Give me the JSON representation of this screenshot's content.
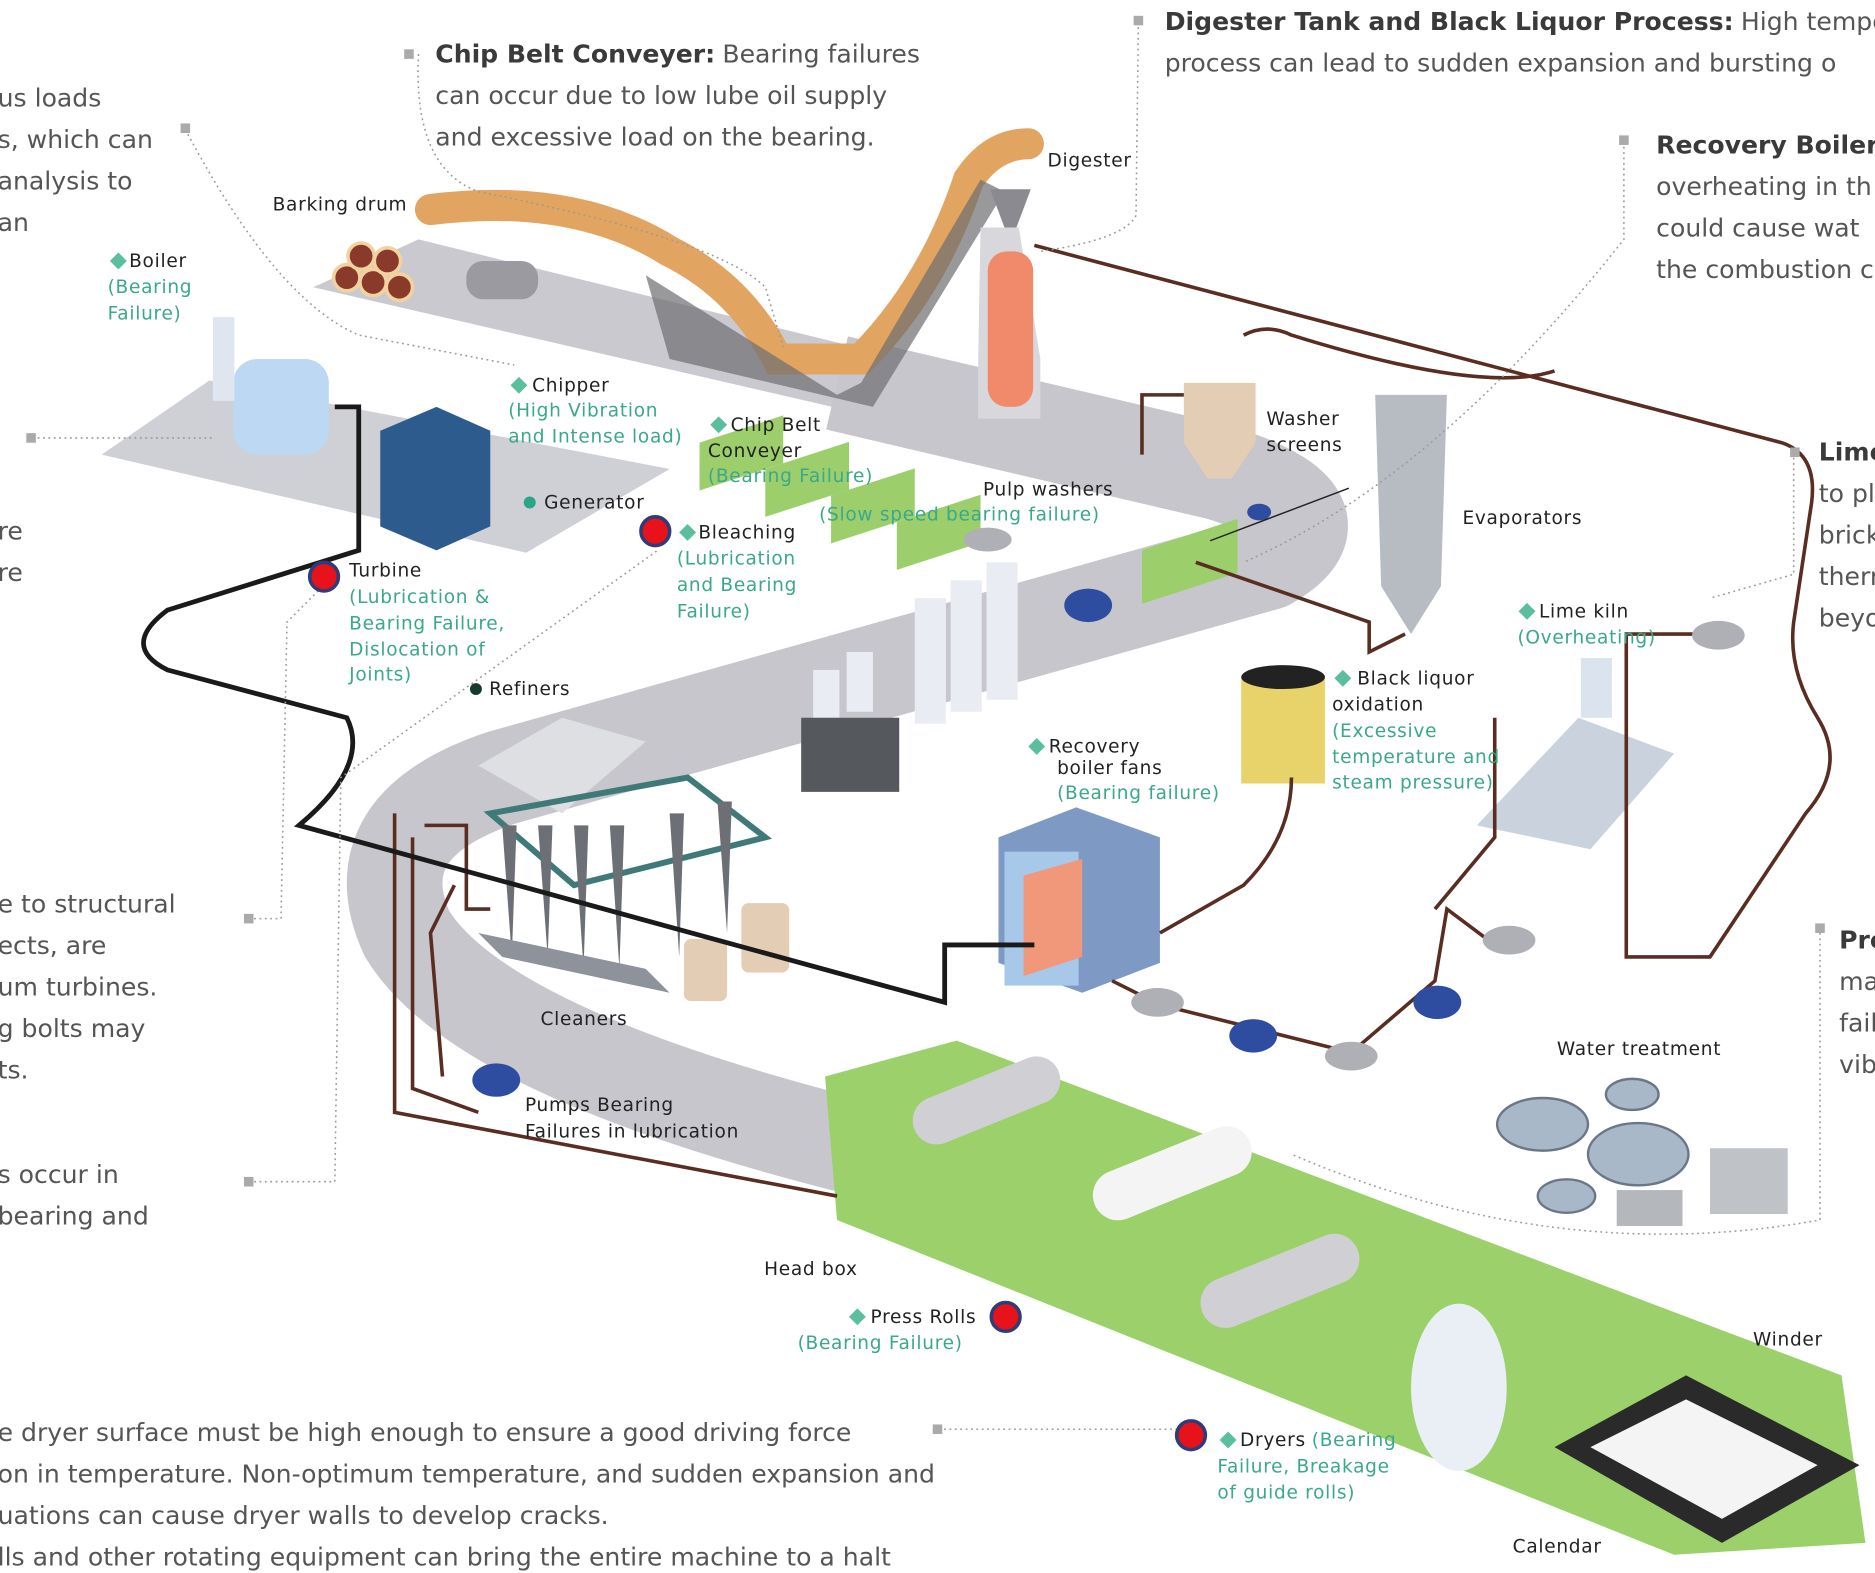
{
  "callouts": [
    {
      "lines": [
        "us loads",
        "s, which can",
        "analysis to",
        "an"
      ]
    },
    {
      "head": "Chip Belt Conveyer:",
      "lines": [
        "Bearing failures",
        "can occur due to low lube oil supply",
        "and excessive load on the bearing."
      ]
    },
    {
      "head": "Digester Tank and Black Liquor Process:",
      "lines": [
        "High tempera",
        "process can lead to sudden expansion and bursting o"
      ]
    },
    {
      "head": "Recovery Boiler:",
      "lines": [
        "",
        "overheating in th",
        "could cause wat",
        "the combustion c"
      ]
    },
    {
      "lines": [
        "re",
        "re"
      ]
    },
    {
      "head": "Lime",
      "lines": [
        "",
        "to pl",
        "brick",
        "therr",
        "beyo"
      ]
    },
    {
      "lines": [
        "e to structural",
        "ects, are",
        "um turbines.",
        "g bolts may",
        "ts."
      ]
    },
    {
      "lines": [
        "s occur in",
        "bearing and"
      ]
    },
    {
      "head": "Pre",
      "lines": [
        "",
        "ma",
        "fail",
        "vib"
      ]
    },
    {
      "lines": [
        "e dryer surface must be high enough to ensure a good driving force",
        "on in temperature. Non-optimum temperature, and sudden expansion and",
        "uations can cause dryer walls to develop cracks.",
        "lls and other rotating equipment can bring the entire machine to a halt"
      ]
    }
  ],
  "labels": [
    {
      "name": [
        "Barking drum"
      ]
    },
    {
      "name": [
        "Digester"
      ]
    },
    {
      "name": [
        "Boiler"
      ],
      "note": [
        "(Bearing",
        "Failure)"
      ]
    },
    {
      "name": [
        "Chipper"
      ],
      "note": [
        "(High Vibration",
        "and Intense load)"
      ]
    },
    {
      "name": [
        "Chip Belt",
        "Conveyer"
      ],
      "note": [
        "(Bearing Failure)"
      ]
    },
    {
      "name": [
        "Washer",
        "screens"
      ]
    },
    {
      "name": [
        "Pulp washers"
      ],
      "note": [
        "(Slow speed bearing failure)"
      ]
    },
    {
      "name": [
        "Evaporators"
      ]
    },
    {
      "name": [
        "Generator"
      ]
    },
    {
      "name": [
        "Bleaching"
      ],
      "note": [
        "(Lubrication",
        "and Bearing",
        "Failure)"
      ]
    },
    {
      "name": [
        "Turbine"
      ],
      "note": [
        "(Lubrication &",
        "Bearing Failure,",
        "Dislocation of",
        "Joints)"
      ]
    },
    {
      "name": [
        "Lime kiln"
      ],
      "note": [
        "(Overheating)"
      ]
    },
    {
      "name": [
        "Black  liquor",
        "oxidation"
      ],
      "note": [
        "(Excessive",
        "temperature and",
        "steam pressure)"
      ]
    },
    {
      "name": [
        "Refiners"
      ]
    },
    {
      "name": [
        "Recovery",
        "boiler fans"
      ],
      "note": [
        "(Bearing failure)"
      ]
    },
    {
      "name": [
        "Cleaners"
      ]
    },
    {
      "name": [
        "Water treatment"
      ]
    },
    {
      "name": [
        "Pumps Bearing",
        "Failures in lubrication"
      ]
    },
    {
      "name": [
        "Head box"
      ]
    },
    {
      "name": [
        "Press Rolls"
      ],
      "note": [
        "(Bearing Failure)"
      ]
    },
    {
      "name": [
        "Winder"
      ]
    },
    {
      "name": [
        "Dryers"
      ],
      "note": [
        "(Bearing",
        "Failure, Breakage",
        "of guide rolls)"
      ]
    },
    {
      "name": [
        "Calendar"
      ]
    }
  ]
}
